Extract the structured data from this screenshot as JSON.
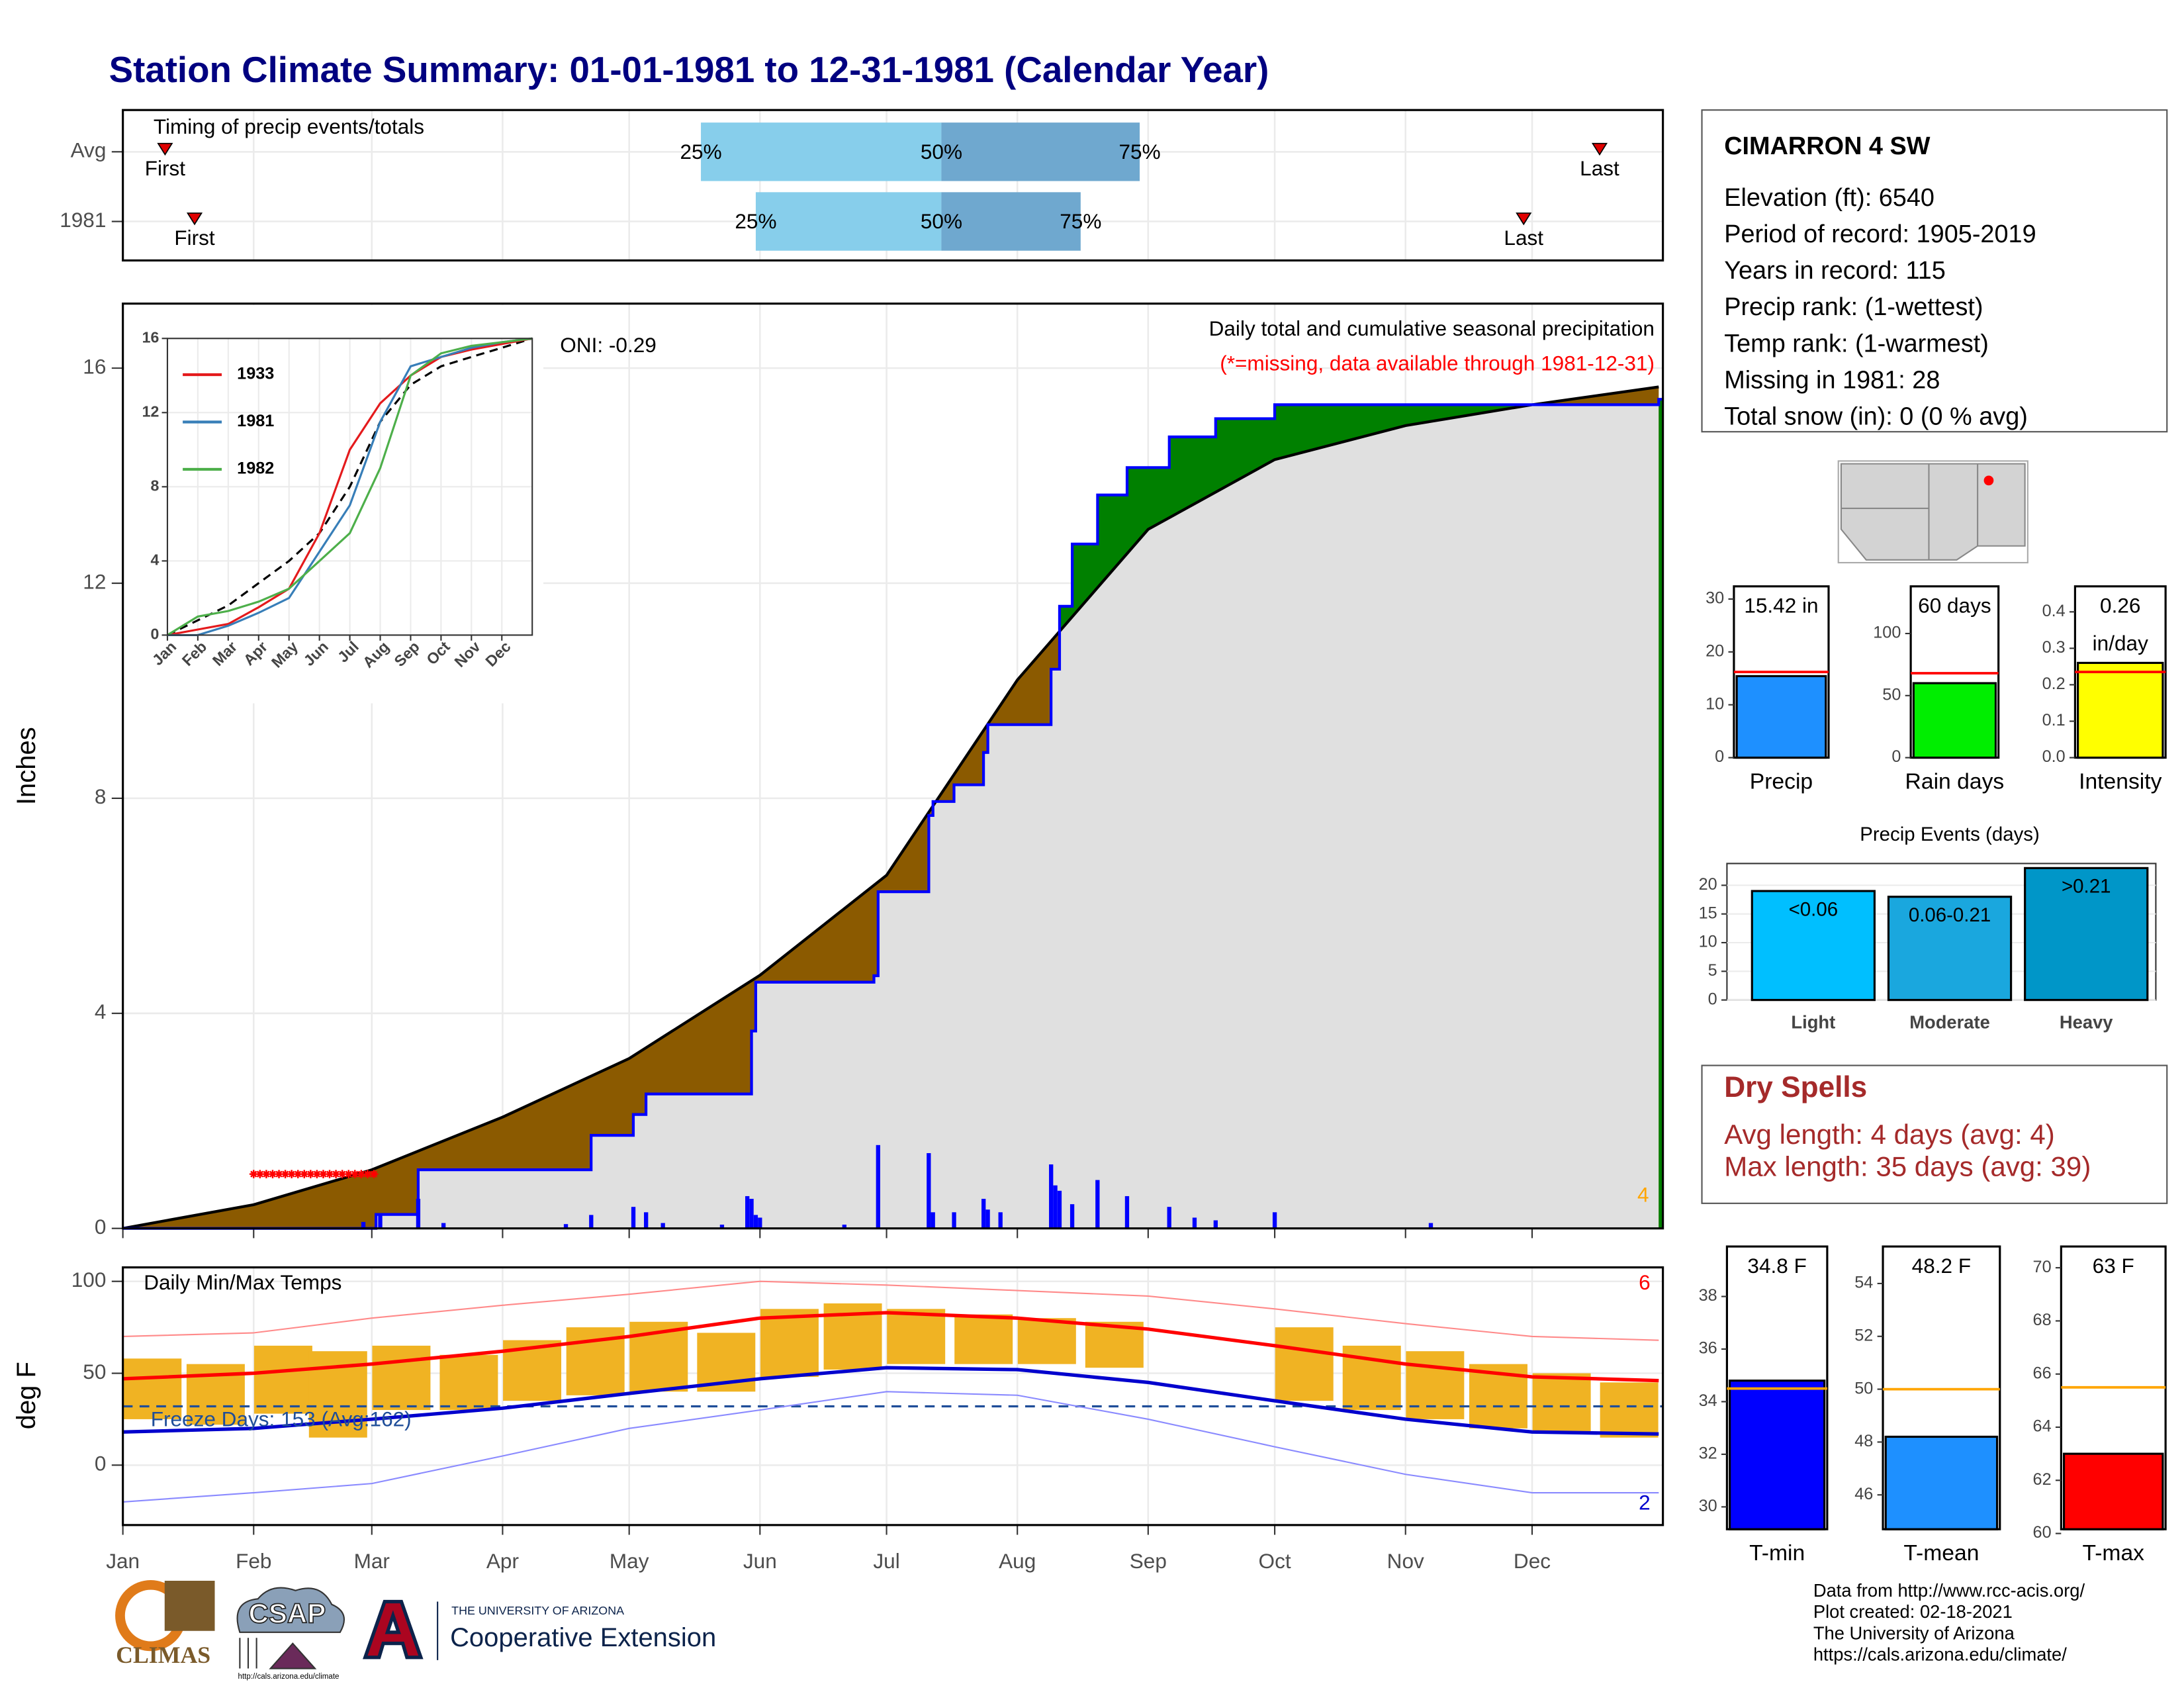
{
  "title": "Station Climate Summary: 01-01-1981 to 12-31-1981 (Calendar Year)",
  "chart_data": [
    {
      "type": "timing",
      "title": "Timing of precip events/totals",
      "xlim": [
        1,
        366
      ],
      "labels": {
        "first": "First",
        "p25": "25%",
        "p50": "50%",
        "p75": "75%",
        "last": "Last"
      },
      "colors": [
        "#87ceeb",
        "#6fa8cf"
      ],
      "rows": [
        {
          "name": "Avg",
          "first": 11,
          "p25": 138,
          "p50": 195,
          "p75": 242,
          "last": 351
        },
        {
          "name": "1981",
          "first": 18,
          "p25": 151,
          "p50": 195,
          "p75": 228,
          "last": 333
        }
      ]
    },
    {
      "type": "cumulative",
      "title": "Daily total and cumulative seasonal precipitation",
      "subtitle": "(*=missing, data available through 1981-12-31)",
      "annotation": "ONI: -0.29",
      "corner_label": 4,
      "y_label": "Inches",
      "xlim": [
        1,
        366
      ],
      "ylim": [
        0,
        17.2
      ],
      "yticks": [
        0,
        4,
        8,
        12,
        16
      ],
      "series": [
        {
          "name": "1981",
          "color": "#0000ff",
          "x": [
            1,
            61,
            71,
            112,
            122,
            125,
            150,
            151,
            179,
            180,
            192,
            193,
            198,
            205,
            206,
            213,
            221,
            223,
            226,
            232,
            239,
            249,
            260,
            274,
            365
          ],
          "values": [
            0,
            0.26,
            1.09,
            1.73,
            2.12,
            2.5,
            3.67,
            4.58,
            4.7,
            6.26,
            7.68,
            7.94,
            8.25,
            8.85,
            9.37,
            9.37,
            10.4,
            11.57,
            12.73,
            13.64,
            14.15,
            14.72,
            15.06,
            15.32,
            15.42
          ]
        }
      ],
      "average": {
        "color": "#000000",
        "x": [
          1,
          32,
          60,
          91,
          121,
          152,
          182,
          213,
          244,
          274,
          305,
          335,
          365
        ],
        "values": [
          0,
          0.44,
          1.09,
          2.07,
          3.16,
          4.71,
          6.57,
          10.2,
          13.0,
          14.3,
          14.93,
          15.32,
          15.65
        ]
      },
      "daily": {
        "color": "#0000ff",
        "x": [
          58,
          62,
          71,
          77,
          106,
          112,
          122,
          125,
          129,
          143,
          149,
          150,
          151,
          152,
          172,
          180,
          192,
          193,
          198,
          205,
          206,
          209,
          221,
          222,
          223,
          226,
          232,
          239,
          249,
          255,
          260,
          274,
          311
        ],
        "values": [
          0.12,
          0.26,
          0.55,
          0.1,
          0.08,
          0.25,
          0.4,
          0.3,
          0.1,
          0.07,
          0.6,
          0.55,
          0.25,
          0.2,
          0.07,
          1.55,
          1.4,
          0.3,
          0.3,
          0.55,
          0.35,
          0.3,
          1.19,
          0.8,
          0.7,
          0.45,
          0.9,
          0.6,
          0.4,
          0.2,
          0.15,
          0.3,
          0.1
        ]
      },
      "missing": [
        32,
        61
      ],
      "missing_color": "#ff0000"
    },
    {
      "type": "line",
      "xlim": [
        0,
        12
      ],
      "ylim": [
        0,
        16
      ],
      "yticks": [
        0,
        4,
        8,
        12,
        16
      ],
      "xticks": [
        {
          "value": 0,
          "label": "Jan"
        },
        {
          "value": 1,
          "label": "Feb"
        },
        {
          "value": 2,
          "label": "Mar"
        },
        {
          "value": 3,
          "label": "Apr"
        },
        {
          "value": 4,
          "label": "May"
        },
        {
          "value": 5,
          "label": "Jun"
        },
        {
          "value": 6,
          "label": "Jul"
        },
        {
          "value": 7,
          "label": "Aug"
        },
        {
          "value": 8,
          "label": "Sep"
        },
        {
          "value": 9,
          "label": "Oct"
        },
        {
          "value": 10,
          "label": "Nov"
        },
        {
          "value": 11,
          "label": "Dec"
        }
      ],
      "x": [
        0,
        1,
        2,
        3,
        4,
        5,
        6,
        7,
        8,
        9,
        10,
        11,
        12
      ],
      "series": [
        {
          "name": "1933",
          "color": "#e41a1c",
          "values": [
            0,
            0.3,
            0.6,
            1.5,
            2.5,
            5.5,
            10,
            12.5,
            14,
            15,
            15.4,
            15.7,
            16
          ]
        },
        {
          "name": "1981",
          "color": "#377eb8",
          "values": [
            0,
            0,
            0.5,
            1.2,
            2,
            4.5,
            7,
            11.5,
            14.5,
            15,
            15.5,
            15.8,
            16
          ]
        },
        {
          "name": "1982",
          "color": "#4daf4a",
          "values": [
            0,
            1,
            1.3,
            1.8,
            2.5,
            4,
            5.5,
            9,
            14,
            15.2,
            15.6,
            15.8,
            16
          ]
        }
      ],
      "average": {
        "color": "#000000",
        "values": [
          0,
          0.8,
          1.6,
          2.8,
          4,
          5.5,
          8,
          11.5,
          13.5,
          14.5,
          15,
          15.5,
          16
        ]
      },
      "legend": "top-left"
    },
    {
      "type": "temperature",
      "title": "Daily Min/Max Temps",
      "y_label": "deg F",
      "annotation": "Freeze Days: 153 (Avg:162)",
      "freeze_threshold": 32,
      "corner_high": 6,
      "corner_low": 2,
      "xlim": [
        1,
        366
      ],
      "ylim": [
        -32.6,
        107.6
      ],
      "yticks": [
        0,
        50,
        100
      ],
      "xticks": [
        {
          "value": 1,
          "label": "Jan"
        },
        {
          "value": 32,
          "label": "Feb"
        },
        {
          "value": 60,
          "label": "Mar"
        },
        {
          "value": 91,
          "label": "Apr"
        },
        {
          "value": 121,
          "label": "May"
        },
        {
          "value": 152,
          "label": "Jun"
        },
        {
          "value": 182,
          "label": "Jul"
        },
        {
          "value": 213,
          "label": "Aug"
        },
        {
          "value": 244,
          "label": "Sep"
        },
        {
          "value": 274,
          "label": "Oct"
        },
        {
          "value": 305,
          "label": "Nov"
        },
        {
          "value": 335,
          "label": "Dec"
        }
      ],
      "observed": {
        "color": "#f0b323",
        "x": [
          8,
          23,
          39,
          52,
          67,
          83,
          98,
          113,
          128,
          144,
          159,
          174,
          189,
          205,
          220,
          236,
          251,
          266,
          281,
          297,
          312,
          327,
          342,
          358
        ],
        "max": [
          58,
          55,
          65,
          62,
          65,
          60,
          68,
          75,
          78,
          72,
          85,
          88,
          85,
          82,
          80,
          78,
          null,
          null,
          75,
          65,
          62,
          55,
          50,
          45
        ],
        "min": [
          25,
          22,
          28,
          15,
          30,
          30,
          35,
          38,
          40,
          40,
          48,
          52,
          55,
          55,
          55,
          53,
          null,
          null,
          35,
          30,
          25,
          20,
          18,
          15
        ]
      },
      "x": [
        1,
        32,
        60,
        91,
        121,
        152,
        182,
        213,
        244,
        274,
        305,
        335,
        365
      ],
      "series": [
        {
          "name": "avg max",
          "color": "#ff0000",
          "values": [
            47,
            50,
            55,
            62,
            70,
            80,
            83,
            80,
            74,
            65,
            55,
            48,
            46
          ]
        },
        {
          "name": "avg min",
          "color": "#0000cd",
          "values": [
            18,
            20,
            25,
            31,
            39,
            47,
            53,
            52,
            45,
            35,
            25,
            18,
            17
          ]
        },
        {
          "name": "record max",
          "color": "#ff8a8a",
          "values": [
            70,
            72,
            80,
            87,
            93,
            100,
            98,
            95,
            92,
            85,
            77,
            70,
            68
          ]
        },
        {
          "name": "record min",
          "color": "#8a8aff",
          "values": [
            -20,
            -15,
            -10,
            5,
            20,
            30,
            40,
            38,
            25,
            10,
            -5,
            -15,
            -15
          ]
        }
      ]
    },
    {
      "type": "gauge",
      "category": "Precip",
      "value": 15.42,
      "value_label": [
        "15.42 in"
      ],
      "average": 16.2,
      "color": "#1e90ff",
      "average_color": "#ff0000",
      "ylim": [
        0,
        32.4
      ],
      "yticks": [
        0,
        10,
        20,
        30
      ]
    },
    {
      "type": "gauge",
      "category": "Rain days",
      "value": 60,
      "value_label": [
        "60 days"
      ],
      "average": 68,
      "color": "#00ee00",
      "average_color": "#ff0000",
      "ylim": [
        0,
        138
      ],
      "yticks": [
        0,
        50,
        100
      ]
    },
    {
      "type": "gauge",
      "category": "Intensity",
      "value": 0.26,
      "value_label": [
        "0.26",
        "in/day"
      ],
      "average": 0.235,
      "color": "#ffff00",
      "average_color": "#ff0000",
      "ylim": [
        0,
        0.47
      ],
      "yticks": [
        {
          "value": 0,
          "label": "0.0"
        },
        0.1,
        0.2,
        0.3,
        0.4
      ]
    },
    {
      "type": "bar",
      "title": "Precip Events (days)",
      "categories": [
        "Light",
        "Moderate",
        "Heavy"
      ],
      "values": [
        19,
        18,
        23
      ],
      "value_labels": [
        "<0.06",
        "0.06-0.21",
        ">0.21"
      ],
      "colors": [
        "#00bfff",
        "#1aa7de",
        "#0096c8"
      ],
      "ylim": [
        0,
        23.8
      ],
      "yticks": [
        0,
        5,
        10,
        15,
        20
      ]
    },
    {
      "type": "gauge",
      "category": "T-min",
      "value": 34.8,
      "value_label": [
        "34.8 F"
      ],
      "average": 34.5,
      "color": "#0000ff",
      "average_color": "#ffa500",
      "ylim": [
        29.15,
        39.9
      ],
      "yticks": [
        30,
        32,
        34,
        36,
        38
      ]
    },
    {
      "type": "gauge",
      "category": "T-mean",
      "value": 48.2,
      "value_label": [
        "48.2 F"
      ],
      "average": 50,
      "color": "#1e90ff",
      "average_color": "#ffa500",
      "ylim": [
        44.7,
        55.4
      ],
      "yticks": [
        46,
        48,
        50,
        52,
        54
      ]
    },
    {
      "type": "gauge",
      "category": "T-max",
      "value": 63,
      "value_label": [
        "63 F"
      ],
      "average": 65.5,
      "color": "#ff0000",
      "average_color": "#ffa500",
      "ylim": [
        60.16,
        70.8
      ],
      "yticks": [
        60,
        62,
        64,
        66,
        68,
        70
      ]
    }
  ],
  "station": {
    "name": "CIMARRON 4 SW",
    "lines": [
      "Elevation (ft): 6540",
      "Period of record: 1905-2019",
      "Years in record: 115",
      "Precip rank:  (1-wettest)",
      "Temp rank:  (1-warmest)",
      "Missing in 1981: 28",
      "Total snow (in): 0 (0 % avg)"
    ]
  },
  "dry_spells": {
    "title": "Dry Spells",
    "lines": [
      "Avg length: 4 days (avg: 4)",
      "Max length: 35 days (avg: 39)"
    ]
  },
  "footer": {
    "credits": [
      "Data from http://www.rcc-acis.org/",
      "Plot created: 02-18-2021",
      "The University of Arizona",
      "https://cals.arizona.edu/climate/"
    ],
    "logos": {
      "climas": "CLIMAS",
      "csap": "CSAP",
      "csap_url": "http://cals.arizona.edu/climate",
      "ua": "THE UNIVERSITY OF ARIZONA",
      "coop": "Cooperative Extension"
    }
  }
}
